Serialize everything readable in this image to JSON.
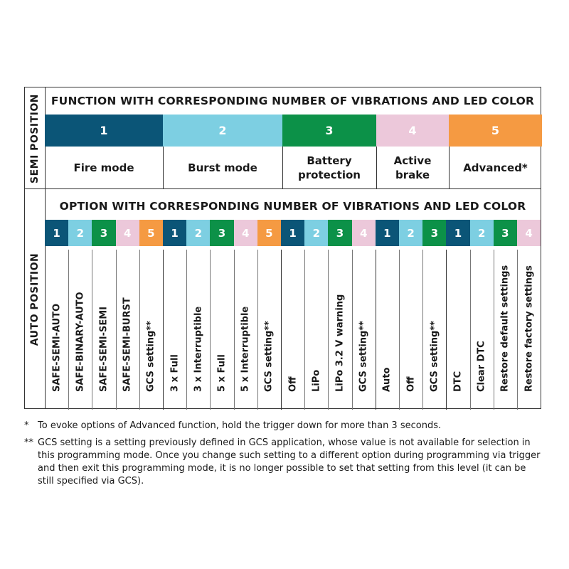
{
  "colors": {
    "1": "#0b5577",
    "2": "#7dcfe2",
    "3": "#0c9148",
    "4": "#ecc8da",
    "5": "#f59a42"
  },
  "semi": {
    "side_label": "SEMI POSITION",
    "title": "FUNCTION WITH CORRESPONDING NUMBER OF VIBRATIONS AND LED COLOR",
    "columns": [
      {
        "num": "1",
        "name": "Fire mode"
      },
      {
        "num": "2",
        "name": "Burst mode"
      },
      {
        "num": "3",
        "name": "Battery\nprotection"
      },
      {
        "num": "4",
        "name": "Active\nbrake"
      },
      {
        "num": "5",
        "name": "Advanced*"
      }
    ]
  },
  "auto": {
    "side_label": "AUTO POSITION",
    "title": "OPTION WITH CORRESPONDING NUMBER OF VIBRATIONS AND LED COLOR",
    "groups": [
      {
        "options": [
          {
            "num": "1",
            "label": "SAFE-SEMI-AUTO"
          },
          {
            "num": "2",
            "label": "SAFE-BINARY-AUTO"
          },
          {
            "num": "3",
            "label": "SAFE-SEMI-SEMI"
          },
          {
            "num": "4",
            "label": "SAFE-SEMI-BURST"
          },
          {
            "num": "5",
            "label": "GCS setting**"
          }
        ]
      },
      {
        "options": [
          {
            "num": "1",
            "label": "3 x Full"
          },
          {
            "num": "2",
            "label": "3 x Interruptible"
          },
          {
            "num": "3",
            "label": "5 x Full"
          },
          {
            "num": "4",
            "label": "5 x Interruptible"
          },
          {
            "num": "5",
            "label": "GCS setting**"
          }
        ]
      },
      {
        "options": [
          {
            "num": "1",
            "label": "Off"
          },
          {
            "num": "2",
            "label": "LiPo"
          },
          {
            "num": "3",
            "label": "LiPo 3.2 V warning"
          },
          {
            "num": "4",
            "label": "GCS setting**"
          }
        ]
      },
      {
        "options": [
          {
            "num": "1",
            "label": "Auto"
          },
          {
            "num": "2",
            "label": "Off"
          },
          {
            "num": "3",
            "label": "GCS setting**"
          }
        ]
      },
      {
        "options": [
          {
            "num": "1",
            "label": "DTC"
          },
          {
            "num": "2",
            "label": "Clear DTC"
          },
          {
            "num": "3",
            "label": "Restore default settings"
          },
          {
            "num": "4",
            "label": "Restore factory settings"
          }
        ]
      }
    ]
  },
  "footnotes": [
    {
      "marker": "*",
      "text": "To evoke options of Advanced function, hold the trigger down for more than 3 seconds."
    },
    {
      "marker": "**",
      "text": "GCS setting is a setting previously defined in GCS application, whose value is not available for selection in this programming mode. Once you change such setting to a different option during programming via trigger and then exit this programming mode, it is no longer possible to set that setting from this level (it can be still specified via GCS)."
    }
  ]
}
